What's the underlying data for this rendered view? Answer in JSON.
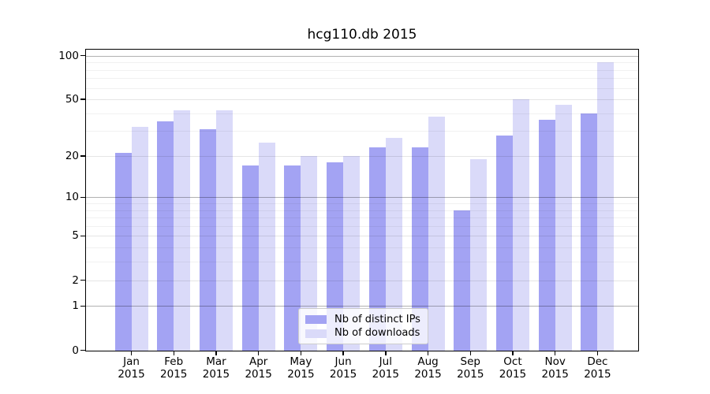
{
  "title": "hcg110.db 2015",
  "chart_data": {
    "type": "bar",
    "title": "hcg110.db 2015",
    "y_scale": "log1p",
    "grid": true,
    "legend_position": "lower-center",
    "categories": [
      "Jan",
      "Feb",
      "Mar",
      "Apr",
      "May",
      "Jun",
      "Jul",
      "Aug",
      "Sep",
      "Oct",
      "Nov",
      "Dec"
    ],
    "category_year": "2015",
    "series": [
      {
        "name": "Nb of distinct IPs",
        "color": "#a3a3f3",
        "values": [
          21,
          35,
          31,
          17,
          17,
          18,
          23,
          23,
          8,
          28,
          36,
          40
        ]
      },
      {
        "name": "Nb of downloads",
        "color": "#dadaf9",
        "values": [
          32,
          42,
          42,
          25,
          20,
          20,
          27,
          38,
          19,
          50,
          46,
          90
        ]
      }
    ],
    "ylim": [
      0,
      110
    ],
    "yticks": [
      0,
      1,
      2,
      5,
      10,
      20,
      50,
      100
    ],
    "gridlines": {
      "decade": [
        1,
        10,
        100
      ],
      "mid": [
        2,
        5,
        20,
        50
      ],
      "minor": [
        3,
        4,
        6,
        7,
        8,
        9,
        30,
        40,
        60,
        70,
        80,
        90
      ]
    }
  },
  "legend": {
    "items": [
      {
        "label": "Nb of distinct IPs"
      },
      {
        "label": "Nb of downloads"
      }
    ]
  }
}
